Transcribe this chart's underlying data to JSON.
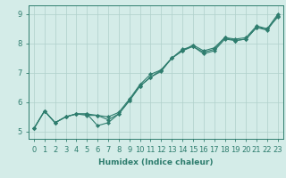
{
  "xlabel": "Humidex (Indice chaleur)",
  "xlim": [
    -0.5,
    23.5
  ],
  "ylim": [
    4.75,
    9.3
  ],
  "bg_color": "#d4ece8",
  "grid_color": "#b0d0cb",
  "line_color": "#2e7d6e",
  "line1_y": [
    5.1,
    5.7,
    5.3,
    5.5,
    5.6,
    5.6,
    5.55,
    5.5,
    5.65,
    6.1,
    6.6,
    6.95,
    7.1,
    7.5,
    7.75,
    7.95,
    7.75,
    7.85,
    8.2,
    8.15,
    8.2,
    8.6,
    8.5,
    9.0
  ],
  "line2_y": [
    5.1,
    5.7,
    5.3,
    5.5,
    5.6,
    5.55,
    5.55,
    5.4,
    5.6,
    6.05,
    6.55,
    6.85,
    7.05,
    7.5,
    7.8,
    7.9,
    7.65,
    7.75,
    8.15,
    8.1,
    8.15,
    8.55,
    8.5,
    8.9
  ],
  "line3_y": [
    5.1,
    5.7,
    5.3,
    5.5,
    5.6,
    5.6,
    5.2,
    5.3,
    5.6,
    6.05,
    6.55,
    6.85,
    7.1,
    7.5,
    7.75,
    7.9,
    7.7,
    7.8,
    8.2,
    8.1,
    8.15,
    8.55,
    8.45,
    8.95
  ],
  "x": [
    0,
    1,
    2,
    3,
    4,
    5,
    6,
    7,
    8,
    9,
    10,
    11,
    12,
    13,
    14,
    15,
    16,
    17,
    18,
    19,
    20,
    21,
    22,
    23
  ],
  "yticks": [
    5,
    6,
    7,
    8,
    9
  ],
  "xticks": [
    0,
    1,
    2,
    3,
    4,
    5,
    6,
    7,
    8,
    9,
    10,
    11,
    12,
    13,
    14,
    15,
    16,
    17,
    18,
    19,
    20,
    21,
    22,
    23
  ],
  "marker": "D",
  "markersize": 2.2,
  "linewidth": 0.8,
  "label_fontsize": 6.5,
  "tick_fontsize": 6.0
}
